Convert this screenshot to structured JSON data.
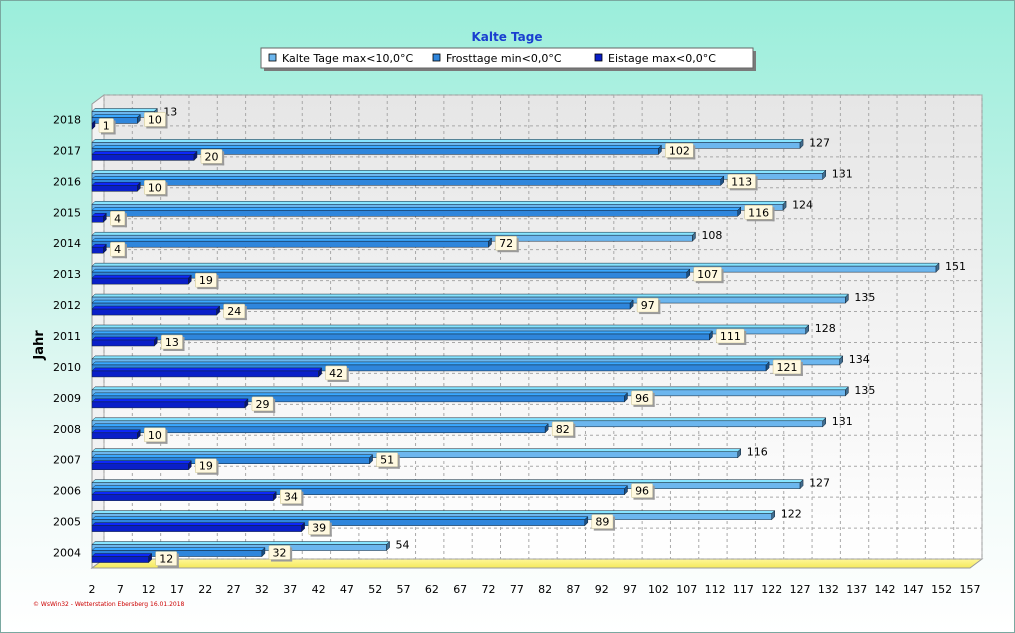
{
  "chart_data": {
    "type": "bar",
    "orientation": "horizontal",
    "title": "Kalte Tage",
    "ylabel": "Jahr",
    "xlabel": "",
    "categories": [
      "2018",
      "2017",
      "2016",
      "2015",
      "2014",
      "2013",
      "2012",
      "2011",
      "2010",
      "2009",
      "2008",
      "2007",
      "2006",
      "2005",
      "2004"
    ],
    "series": [
      {
        "name": "Kalte Tage max<10,0°C",
        "color": "#6cb6ee",
        "values": [
          13,
          127,
          131,
          124,
          108,
          151,
          135,
          128,
          134,
          135,
          131,
          116,
          127,
          122,
          54
        ]
      },
      {
        "name": "Frosttage min<0,0°C",
        "color": "#2f86dc",
        "values": [
          10,
          102,
          113,
          116,
          72,
          107,
          97,
          111,
          121,
          96,
          82,
          51,
          96,
          89,
          32
        ]
      },
      {
        "name": "Eistage max<0,0°C",
        "color": "#0a1fc8",
        "values": [
          1,
          20,
          10,
          4,
          4,
          19,
          24,
          13,
          42,
          29,
          10,
          19,
          34,
          39,
          12
        ]
      }
    ],
    "x_ticks": [
      2,
      7,
      12,
      17,
      22,
      27,
      32,
      37,
      42,
      47,
      52,
      57,
      62,
      67,
      72,
      77,
      82,
      87,
      92,
      97,
      102,
      107,
      112,
      117,
      122,
      127,
      132,
      137,
      142,
      147,
      152,
      157
    ],
    "xlim": [
      2,
      157
    ],
    "grid": true,
    "legend_position": "top-center"
  },
  "footer": "© WsWin32 - Wetterstation Ebersberg 16.01.2018"
}
